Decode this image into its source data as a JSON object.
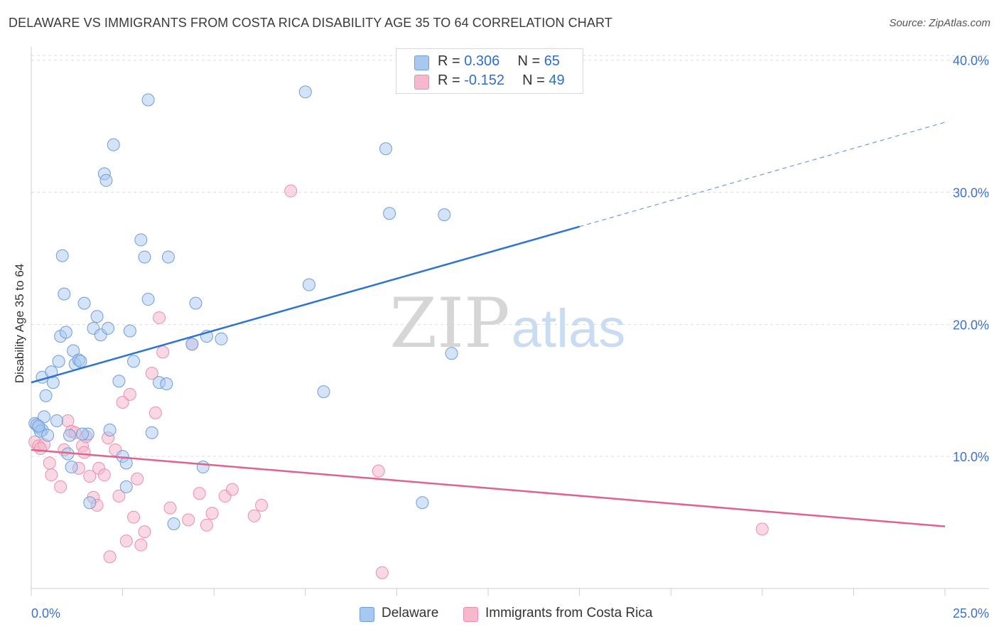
{
  "title": "DELAWARE VS IMMIGRANTS FROM COSTA RICA DISABILITY AGE 35 TO 64 CORRELATION CHART",
  "source": "Source: ZipAtlas.com",
  "watermark": {
    "zip": "ZIP",
    "atlas": "atlas"
  },
  "legend": {
    "rows": [
      {
        "r_label": "R = ",
        "r_value": "0.306",
        "n_label": "N = ",
        "n_value": "65"
      },
      {
        "r_label": "R = ",
        "r_value": "-0.152",
        "n_label": "N = ",
        "n_value": "49"
      }
    ]
  },
  "bottom_legend": [
    "Delaware",
    "Immigrants from Costa Rica"
  ],
  "chart_data": {
    "type": "scatter",
    "title": "DELAWARE VS IMMIGRANTS FROM COSTA RICA DISABILITY AGE 35 TO 64 CORRELATION CHART",
    "xlabel": "",
    "ylabel": "Disability Age 35 to 64",
    "xlim": [
      0,
      25
    ],
    "ylim": [
      0,
      40.9
    ],
    "x_tick_labels": [
      "0.0%",
      "25.0%"
    ],
    "y_ticks": [
      10,
      20,
      30,
      40
    ],
    "y_tick_labels": [
      "10.0%",
      "20.0%",
      "30.0%",
      "40.0%"
    ],
    "grid": true,
    "legend_position": "top-center",
    "colors": {
      "delaware_fill": "#a9c8f0",
      "delaware_edge": "#6f9ed8",
      "delaware_line": "#2e74d0",
      "costa_rica_fill": "#f6b8cc",
      "costa_rica_edge": "#e890ab",
      "costa_rica_line": "#e0638d",
      "tick_label": "#3b73c8",
      "grid": "#dddddd"
    },
    "series": [
      {
        "name": "Delaware",
        "r": 0.306,
        "n": 65,
        "trend": {
          "x0": 0.0,
          "y0": 15.6,
          "x1": 15.0,
          "y1": 27.4,
          "dashed_to_x": 25.0,
          "dashed_to_y": 35.3
        },
        "points": [
          [
            0.1,
            12.5
          ],
          [
            0.2,
            12.2
          ],
          [
            0.3,
            12.0
          ],
          [
            0.15,
            12.4
          ],
          [
            0.25,
            11.9
          ],
          [
            0.45,
            11.6
          ],
          [
            0.35,
            13.0
          ],
          [
            0.4,
            14.6
          ],
          [
            0.3,
            16.0
          ],
          [
            0.55,
            16.4
          ],
          [
            0.6,
            15.6
          ],
          [
            0.75,
            17.2
          ],
          [
            0.8,
            19.1
          ],
          [
            0.85,
            25.2
          ],
          [
            0.9,
            22.3
          ],
          [
            0.95,
            19.4
          ],
          [
            1.0,
            10.2
          ],
          [
            1.05,
            11.6
          ],
          [
            1.1,
            9.2
          ],
          [
            1.15,
            18.0
          ],
          [
            1.2,
            17.0
          ],
          [
            1.3,
            17.3
          ],
          [
            1.35,
            17.2
          ],
          [
            1.45,
            21.6
          ],
          [
            1.55,
            11.7
          ],
          [
            1.6,
            6.5
          ],
          [
            1.7,
            19.7
          ],
          [
            1.8,
            20.6
          ],
          [
            1.9,
            19.2
          ],
          [
            2.0,
            31.4
          ],
          [
            2.05,
            30.9
          ],
          [
            2.1,
            19.7
          ],
          [
            2.15,
            12.0
          ],
          [
            2.25,
            33.6
          ],
          [
            2.4,
            15.7
          ],
          [
            2.5,
            10.0
          ],
          [
            2.6,
            9.5
          ],
          [
            2.7,
            19.5
          ],
          [
            2.8,
            17.2
          ],
          [
            3.0,
            26.4
          ],
          [
            3.1,
            25.1
          ],
          [
            3.2,
            21.9
          ],
          [
            3.3,
            11.8
          ],
          [
            3.5,
            15.6
          ],
          [
            3.7,
            15.5
          ],
          [
            3.75,
            25.1
          ],
          [
            3.9,
            4.9
          ],
          [
            3.2,
            37.0
          ],
          [
            2.6,
            7.7
          ],
          [
            4.5,
            21.6
          ],
          [
            4.7,
            9.2
          ],
          [
            4.8,
            19.1
          ],
          [
            5.2,
            18.9
          ],
          [
            4.4,
            18.5
          ],
          [
            7.5,
            37.6
          ],
          [
            7.6,
            23.0
          ],
          [
            8.0,
            14.9
          ],
          [
            9.7,
            33.3
          ],
          [
            9.8,
            28.4
          ],
          [
            11.3,
            28.3
          ],
          [
            11.5,
            17.8
          ],
          [
            10.7,
            6.5
          ],
          [
            1.4,
            11.7
          ],
          [
            0.7,
            12.7
          ],
          [
            0.2,
            12.3
          ]
        ]
      },
      {
        "name": "Immigrants from Costa Rica",
        "r": -0.152,
        "n": 49,
        "trend": {
          "x0": 0.0,
          "y0": 10.5,
          "x1": 25.0,
          "y1": 4.7
        },
        "points": [
          [
            0.1,
            11.1
          ],
          [
            0.2,
            10.8
          ],
          [
            0.35,
            10.9
          ],
          [
            0.5,
            9.5
          ],
          [
            0.55,
            8.6
          ],
          [
            0.8,
            7.7
          ],
          [
            0.9,
            10.5
          ],
          [
            1.0,
            12.7
          ],
          [
            1.1,
            11.9
          ],
          [
            1.2,
            11.8
          ],
          [
            1.3,
            9.1
          ],
          [
            1.4,
            10.8
          ],
          [
            1.45,
            10.3
          ],
          [
            1.5,
            11.5
          ],
          [
            1.6,
            8.5
          ],
          [
            1.7,
            6.9
          ],
          [
            1.8,
            6.3
          ],
          [
            1.85,
            9.1
          ],
          [
            2.0,
            8.6
          ],
          [
            2.1,
            11.4
          ],
          [
            2.15,
            2.4
          ],
          [
            2.3,
            10.5
          ],
          [
            2.4,
            7.0
          ],
          [
            2.5,
            14.1
          ],
          [
            2.6,
            3.6
          ],
          [
            2.7,
            14.7
          ],
          [
            2.8,
            5.4
          ],
          [
            2.9,
            8.3
          ],
          [
            3.0,
            3.3
          ],
          [
            3.1,
            4.3
          ],
          [
            3.3,
            16.3
          ],
          [
            3.4,
            13.3
          ],
          [
            3.5,
            20.5
          ],
          [
            3.6,
            17.9
          ],
          [
            3.8,
            6.1
          ],
          [
            4.3,
            5.2
          ],
          [
            4.4,
            18.5
          ],
          [
            4.6,
            7.2
          ],
          [
            4.8,
            4.8
          ],
          [
            4.95,
            5.7
          ],
          [
            5.3,
            7.0
          ],
          [
            5.5,
            7.5
          ],
          [
            6.1,
            5.5
          ],
          [
            6.3,
            6.3
          ],
          [
            7.1,
            30.1
          ],
          [
            9.5,
            8.9
          ],
          [
            9.6,
            1.2
          ],
          [
            20.0,
            4.5
          ],
          [
            0.25,
            10.6
          ]
        ]
      }
    ]
  }
}
